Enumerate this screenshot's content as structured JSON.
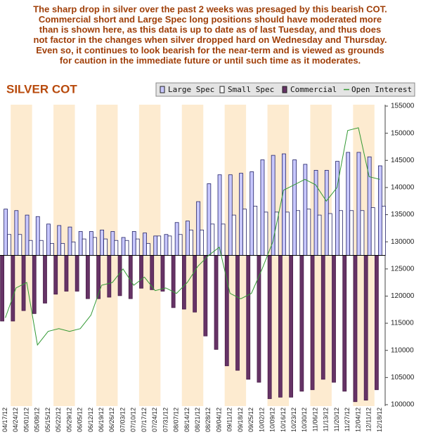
{
  "chart_data": {
    "type": "bar",
    "annotation": [
      "The sharp drop in silver over the past 2 weeks was presaged by this bearish COT.",
      "Commercial short and Large Spec long positions should have moderated more",
      "than is shown here, as this data is up to date as of last Tuesday, and thus does",
      "not factor in the changes when silver dropped hard on Wednesday and Thursday.",
      "Even so, it continues to look bearish for the near-term and is viewed as grounds",
      "for caution in the immediate future or until such time as it moderates."
    ],
    "title": "SILVER COT",
    "categories": [
      "04/17/12",
      "04/24/12",
      "05/01/12",
      "05/08/12",
      "05/15/12",
      "05/22/12",
      "05/29/12",
      "06/05/12",
      "06/12/12",
      "06/19/12",
      "06/26/12",
      "07/03/12",
      "07/10/12",
      "07/17/12",
      "07/24/12",
      "07/31/12",
      "08/07/12",
      "08/14/12",
      "08/21/12",
      "08/28/12",
      "09/04/12",
      "09/11/12",
      "09/18/12",
      "09/25/12",
      "10/02/12",
      "10/09/12",
      "10/16/12",
      "10/23/12",
      "10/30/12",
      "11/06/12",
      "11/13/12",
      "11/20/12",
      "11/27/12",
      "12/04/12",
      "12/11/12",
      "12/18/12"
    ],
    "ylim": [
      -100,
      100
    ],
    "y2lim": [
      100000,
      155000
    ],
    "y2ticks": [
      100000,
      105000,
      110000,
      115000,
      120000,
      125000,
      130000,
      135000,
      140000,
      145000,
      150000,
      155000
    ],
    "series": [
      {
        "name": "Large Spec",
        "color": "#c8c8ff",
        "values": [
          31,
          30,
          27,
          26,
          21,
          20,
          19,
          16,
          16,
          17,
          16,
          12,
          16,
          15,
          13,
          14,
          22,
          23,
          36,
          48,
          54,
          54,
          55,
          56,
          64,
          67,
          68,
          64,
          61,
          57,
          57,
          63,
          69,
          69,
          66,
          60
        ]
      },
      {
        "name": "Small Spec",
        "color": "#ffffff",
        "values": [
          14,
          14,
          10,
          10,
          8,
          8,
          9,
          11,
          12,
          11,
          10,
          10,
          11,
          8,
          13,
          13,
          14,
          17,
          17,
          21,
          21,
          27,
          31,
          33,
          29,
          29,
          29,
          30,
          31,
          27,
          28,
          30,
          30,
          30,
          32,
          33
        ]
      },
      {
        "name": "Commercial",
        "color": "#663366",
        "values": [
          -44,
          -44,
          -37,
          -39,
          -32,
          -26,
          -24,
          -24,
          -29,
          -29,
          -28,
          -27,
          -29,
          -22,
          -23,
          -24,
          -35,
          -36,
          -38,
          -54,
          -63,
          -74,
          -77,
          -83,
          -85,
          -96,
          -95,
          -95,
          -91,
          -90,
          -83,
          -85,
          -91,
          -98,
          -97,
          -90
        ]
      },
      {
        "name": "Open Interest",
        "color": "#339933",
        "axis": "y2",
        "values": [
          116000,
          121500,
          122500,
          111000,
          113500,
          114000,
          113500,
          114000,
          116500,
          122000,
          122500,
          125000,
          122000,
          123500,
          121000,
          121500,
          120500,
          122500,
          125500,
          127500,
          129000,
          120500,
          119500,
          120500,
          125000,
          130000,
          139500,
          140500,
          141500,
          140500,
          137500,
          140000,
          150500,
          151000,
          142000,
          141500
        ]
      }
    ]
  }
}
